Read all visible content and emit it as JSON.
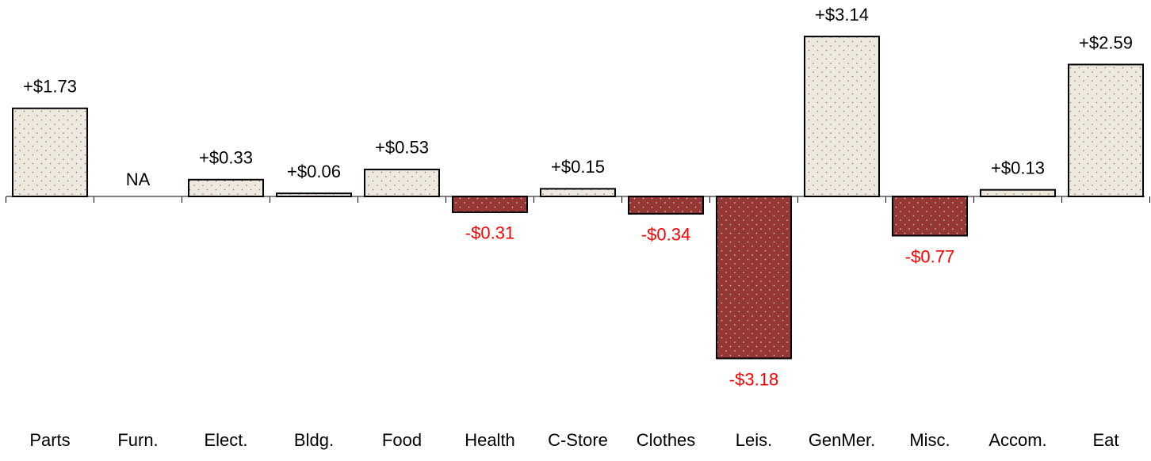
{
  "chart_data": {
    "type": "bar",
    "categories": [
      "Parts",
      "Furn.",
      "Elect.",
      "Bldg.",
      "Food",
      "Health",
      "C-Store",
      "Clothes",
      "Leis.",
      "GenMer.",
      "Misc.",
      "Accom.",
      "Eat"
    ],
    "values": [
      1.73,
      null,
      0.33,
      0.06,
      0.53,
      -0.31,
      0.15,
      -0.34,
      -3.18,
      3.14,
      -0.77,
      0.13,
      2.59
    ],
    "value_labels": [
      "+$1.73",
      "NA",
      "+$0.33",
      "+$0.06",
      "+$0.53",
      "-$0.31",
      "+$0.15",
      "-$0.34",
      "-$3.18",
      "+$3.14",
      "-$0.77",
      "+$0.13",
      "+$2.59"
    ],
    "positive_color": "#eee9df",
    "negative_color": "#953735",
    "positive_label_color": "#000000",
    "negative_label_color": "#ff0000"
  }
}
